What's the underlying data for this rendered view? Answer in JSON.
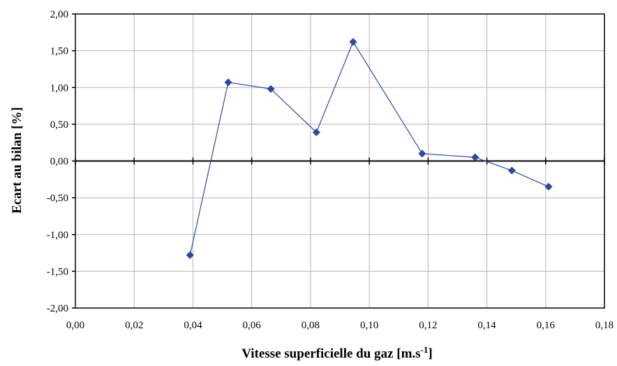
{
  "chart_data": {
    "type": "scatter",
    "title": "",
    "xlabel": "Vitesse superficielle du gaz [m.s",
    "xlabel_sup": "-1",
    "xlabel_end": "]",
    "ylabel": "Ecart au bilan [%]",
    "xlim": [
      0,
      0.18
    ],
    "ylim": [
      -2,
      2
    ],
    "x_ticks": [
      0,
      0.02,
      0.04,
      0.06,
      0.08,
      0.1,
      0.12,
      0.14,
      0.16,
      0.18
    ],
    "y_ticks": [
      2,
      1.5,
      1,
      0.5,
      0,
      -0.5,
      -1,
      -1.5,
      -2
    ],
    "x_tick_labels": [
      "0,00",
      "0,02",
      "0,04",
      "0,06",
      "0,08",
      "0,10",
      "0,12",
      "0,14",
      "0,16",
      "0,18"
    ],
    "y_tick_labels": [
      "2,00",
      "1,50",
      "1,00",
      "0,50",
      "0,00",
      "-0,50",
      "-1,00",
      "-1,50",
      "-2,00"
    ],
    "grid": true,
    "legend": "none",
    "series": [
      {
        "color": "#2E4A9C",
        "marker": "diamond",
        "line": true,
        "points": [
          {
            "x": 0.039,
            "y": -1.28
          },
          {
            "x": 0.052,
            "y": 1.07
          },
          {
            "x": 0.0665,
            "y": 0.98
          },
          {
            "x": 0.082,
            "y": 0.39
          },
          {
            "x": 0.0945,
            "y": 1.62
          },
          {
            "x": 0.118,
            "y": 0.1
          },
          {
            "x": 0.136,
            "y": 0.05
          },
          {
            "x": 0.1485,
            "y": -0.13
          },
          {
            "x": 0.161,
            "y": -0.35
          }
        ]
      }
    ]
  }
}
